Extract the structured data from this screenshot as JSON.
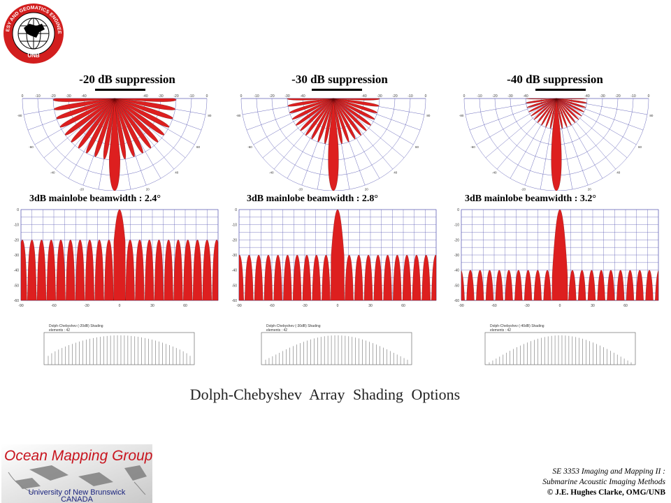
{
  "chart_data": [
    {
      "type": "polar",
      "title": "-20 dB suppression",
      "suppression_db": -20,
      "beamwidth_label": "3dB mainlobe beamwidth : 2.4°",
      "beamwidth_deg": 2.4,
      "elements": 42,
      "radial_ticks_db": [
        "-40",
        "-30",
        "-20",
        "-10",
        "0"
      ],
      "angle_ticks_deg": [
        "-80",
        "-60",
        "-40",
        "-20",
        "0"
      ],
      "rect_x_ticks": [
        "-90",
        "-60",
        "-30",
        "0",
        "30",
        "60"
      ],
      "rect_y_ticks": [
        "0",
        "-10",
        "-20",
        "-30",
        "-40",
        "-50",
        "-60"
      ],
      "rect_xlim": [
        -90,
        90
      ],
      "rect_ylim": [
        -60,
        0
      ],
      "shading_label": "Dolph-Chebyshev (-20dB) Shading",
      "elements_label": "elements : 42"
    },
    {
      "type": "polar",
      "title": "-30 dB suppression",
      "suppression_db": -30,
      "beamwidth_label": "3dB mainlobe beamwidth : 2.8°",
      "beamwidth_deg": 2.8,
      "elements": 42,
      "radial_ticks_db": [
        "-40",
        "-30",
        "-20",
        "-10",
        "0"
      ],
      "angle_ticks_deg": [
        "-80",
        "-60",
        "-40",
        "-20",
        "0"
      ],
      "rect_x_ticks": [
        "-90",
        "-60",
        "-30",
        "0",
        "30",
        "60"
      ],
      "rect_y_ticks": [
        "0",
        "-10",
        "-20",
        "-30",
        "-40",
        "-50",
        "-60"
      ],
      "rect_xlim": [
        -90,
        90
      ],
      "rect_ylim": [
        -60,
        0
      ],
      "shading_label": "Dolph-Chebyshev (-30dB) Shading",
      "elements_label": "elements : 42"
    },
    {
      "type": "polar",
      "title": "-40 dB suppression",
      "suppression_db": -40,
      "beamwidth_label": "3dB mainlobe beamwidth : 3.2°",
      "beamwidth_deg": 3.2,
      "elements": 42,
      "radial_ticks_db": [
        "-40",
        "-30",
        "-20",
        "-10",
        "0"
      ],
      "angle_ticks_deg": [
        "-80",
        "-60",
        "-40",
        "-20",
        "0"
      ],
      "rect_x_ticks": [
        "-90",
        "-60",
        "-30",
        "0",
        "30",
        "60"
      ],
      "rect_y_ticks": [
        "0",
        "-10",
        "-20",
        "-30",
        "-40",
        "-50",
        "-60"
      ],
      "rect_xlim": [
        -90,
        90
      ],
      "rect_ylim": [
        -60,
        0
      ],
      "shading_label": "Dolph-Chebyshev (-40dB) Shading",
      "elements_label": "elements : 42"
    }
  ],
  "caption": "Dolph-Chebyshev  Array  Shading  Options",
  "logo_text": "GEODESY AND GEOMATICS ENGINEERING · UNB",
  "footer": {
    "group_name": "Ocean Mapping Group",
    "university": "University of New Brunswick",
    "country": "CANADA",
    "course_line1": "SE 3353 Imaging and Mapping II :",
    "course_line2": "Submarine Acoustic Imaging Methods",
    "copyright": "© J.E. Hughes Clarke, OMG/UNB"
  },
  "colors": {
    "lobe_fill": "#dd1f1f",
    "lobe_dark": "#5a0000",
    "grid": "#5a5ab4",
    "logo_red": "#d21e1e",
    "omg_red": "#c8141e",
    "text": "#000000"
  }
}
